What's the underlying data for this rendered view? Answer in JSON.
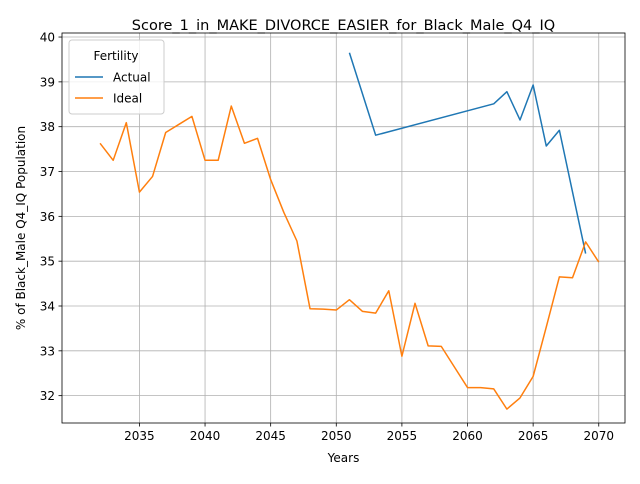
{
  "chart_data": {
    "type": "line",
    "title": "Score_1_in_MAKE_DIVORCE_EASIER_for_Black_Male_Q4_IQ",
    "xlabel": "Years",
    "ylabel": "% of Black_Male Q4_IQ Population",
    "xlim": [
      2029.1,
      2072.0
    ],
    "ylim": [
      31.39,
      40.09
    ],
    "xticks": [
      2035,
      2040,
      2045,
      2050,
      2055,
      2060,
      2065,
      2070
    ],
    "yticks": [
      32,
      33,
      34,
      35,
      36,
      37,
      38,
      39,
      40
    ],
    "grid": true,
    "legend": {
      "title": "Fertility",
      "position": "upper-left"
    },
    "series": [
      {
        "name": "Actual",
        "color": "#1f77b4",
        "x": [
          2051,
          2053,
          2062,
          2063,
          2064,
          2065,
          2066,
          2067,
          2069
        ],
        "y": [
          39.65,
          37.81,
          38.51,
          38.78,
          38.15,
          38.93,
          37.57,
          37.92,
          35.17
        ]
      },
      {
        "name": "Ideal",
        "color": "#ff7f0e",
        "x": [
          2032,
          2033,
          2034,
          2035,
          2036,
          2037,
          2038,
          2039,
          2040,
          2041,
          2042,
          2043,
          2044,
          2045,
          2046,
          2047,
          2048,
          2049,
          2050,
          2051,
          2052,
          2053,
          2054,
          2055,
          2056,
          2057,
          2058,
          2059,
          2060,
          2061,
          2062,
          2063,
          2064,
          2065,
          2066,
          2067,
          2068,
          2069,
          2070
        ],
        "y": [
          37.63,
          37.25,
          38.09,
          36.54,
          36.89,
          37.87,
          38.05,
          38.23,
          37.25,
          37.25,
          38.46,
          37.63,
          37.74,
          36.82,
          36.09,
          35.45,
          33.94,
          33.93,
          33.91,
          34.14,
          33.88,
          33.84,
          34.34,
          32.88,
          34.06,
          33.11,
          33.1,
          32.64,
          32.18,
          32.18,
          32.15,
          31.7,
          31.95,
          32.43,
          33.53,
          34.65,
          34.63,
          35.43,
          34.98
        ]
      }
    ]
  }
}
